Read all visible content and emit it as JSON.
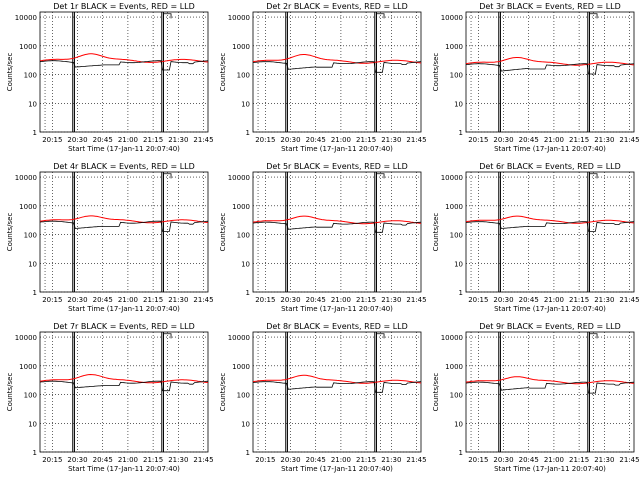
{
  "figure": {
    "ylabel": "Counts/sec",
    "xlabel": "Start Time (17-Jan-11 20:07:40)",
    "x_tick_labels": [
      "20:15",
      "20:30",
      "20:45",
      "21:00",
      "21:15",
      "21:30",
      "21:45"
    ],
    "y_tick_labels": [
      "1",
      "10",
      "100",
      "1000",
      "10000"
    ],
    "colors": {
      "events": "#000000",
      "lld": "#ff0000",
      "grid": "#000000"
    }
  },
  "chart_data": [
    {
      "type": "line",
      "title": "Det 1r  BLACK = Events, RED = LLD",
      "events_level": 280,
      "lld_level": 300,
      "lld_bump": 560,
      "dip": 180
    },
    {
      "type": "line",
      "title": "Det 2r  BLACK = Events, RED = LLD",
      "events_level": 260,
      "lld_level": 280,
      "lld_bump": 530,
      "dip": 150
    },
    {
      "type": "line",
      "title": "Det 3r  BLACK = Events, RED = LLD",
      "events_level": 220,
      "lld_level": 240,
      "lld_bump": 420,
      "dip": 130
    },
    {
      "type": "line",
      "title": "Det 4r  BLACK = Events, RED = LLD",
      "events_level": 270,
      "lld_level": 290,
      "lld_bump": 480,
      "dip": 160
    },
    {
      "type": "line",
      "title": "Det 5r  BLACK = Events, RED = LLD",
      "events_level": 250,
      "lld_level": 270,
      "lld_bump": 470,
      "dip": 150
    },
    {
      "type": "line",
      "title": "Det 6r  BLACK = Events, RED = LLD",
      "events_level": 260,
      "lld_level": 280,
      "lld_bump": 470,
      "dip": 160
    },
    {
      "type": "line",
      "title": "Det 7r  BLACK = Events, RED = LLD",
      "events_level": 270,
      "lld_level": 290,
      "lld_bump": 530,
      "dip": 170
    },
    {
      "type": "line",
      "title": "Det 8r  BLACK = Events, RED = LLD",
      "events_level": 260,
      "lld_level": 280,
      "lld_bump": 500,
      "dip": 150
    },
    {
      "type": "line",
      "title": "Det 9r  BLACK = Events, RED = LLD",
      "events_level": 250,
      "lld_level": 270,
      "lld_bump": 450,
      "dip": 140
    }
  ]
}
